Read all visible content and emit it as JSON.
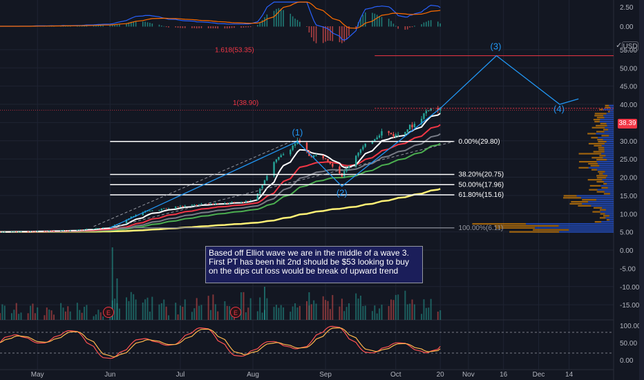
{
  "colors": {
    "background": "#131722",
    "grid": "#1f2433",
    "text": "#b2b5be",
    "up": "#26a69a",
    "down": "#ef5350",
    "ema_white": "#ffffff",
    "ema_red": "#f23645",
    "ema_gray": "#787b86",
    "ema_green": "#4caf50",
    "ema_yellow": "#fff176",
    "elliott": "#2196f3",
    "fib": "#ffffff",
    "extension": "#f23645",
    "macd_blue": "#2962ff",
    "macd_orange": "#ff6d00",
    "stoch_k": "#ff5252",
    "stoch_d": "#ffb74d",
    "volume_profile_up": "#2962ff",
    "volume_profile_down": "#ff9800"
  },
  "axis": {
    "currency_button": "USD",
    "last_price_label": "38.39",
    "x_ticks": [
      "May",
      "Jun",
      "Jul",
      "Aug",
      "Sep",
      "Oct",
      "20",
      "Nov",
      "16",
      "Dec",
      "14"
    ],
    "main_ticks": [
      "55.00",
      "50.00",
      "45.00",
      "40.00",
      "35.00",
      "30.00",
      "25.00",
      "20.00",
      "15.00",
      "10.00",
      "5.00",
      "0.00",
      "-5.00",
      "-10.00",
      "-15.00"
    ],
    "macd_ticks": [
      "2.50",
      "0.00"
    ],
    "stoch_ticks": [
      "100.00",
      "50.00",
      "0.00"
    ]
  },
  "fibonacci": [
    {
      "label": "0.00%(29.80)",
      "price": 29.8
    },
    {
      "label": "38.20%(20.75)",
      "price": 20.75
    },
    {
      "label": "50.00%(17.96)",
      "price": 17.96
    },
    {
      "label": "61.80%(15.16)",
      "price": 15.16
    },
    {
      "label": "100.00%(6.11)",
      "price": 6.11
    }
  ],
  "extensions": [
    {
      "label": "1.618(53.35)",
      "price": 53.35
    },
    {
      "label": "1(38.90)",
      "price": 38.9
    }
  ],
  "waves": [
    "(1)",
    "(2)",
    "(3)",
    "(4)"
  ],
  "earnings_marker": "E",
  "annotation": "Based off  Elliot wave we are in the middle of a wave 3. First PT has been hit 2nd should be $53 looking to buy on the dips cut loss would be break of upward trend",
  "chart_data": {
    "type": "line",
    "title": "",
    "xlabel": "",
    "ylabel": "",
    "ylim": [
      -15,
      58
    ],
    "x_range": [
      "2020-04-15",
      "2021-01-02"
    ],
    "series": [
      {
        "x": [
          "2020-04-15",
          "2020-05-15",
          "2020-06-01",
          "2020-06-15",
          "2020-07-01",
          "2020-07-15",
          "2020-08-01",
          "2020-08-10",
          "2020-08-20",
          "2020-08-25",
          "2020-09-01",
          "2020-09-08",
          "2020-09-15",
          "2020-09-25",
          "2020-10-01",
          "2020-10-10",
          "2020-10-15",
          "2020-10-20"
        ],
        "values": [
          5.0,
          5.4,
          6.3,
          10.5,
          12.0,
          12.8,
          13.5,
          24.0,
          29.8,
          26.0,
          25.5,
          20.5,
          27.0,
          32.5,
          31.5,
          35.0,
          38.9,
          38.4
        ]
      },
      {
        "x": [
          "2020-10-20",
          "2020-11-13",
          "2020-12-10",
          "2020-12-18"
        ],
        "values": [
          38.9,
          53.35,
          40.0,
          41.5
        ]
      }
    ],
    "wave_labels": [
      {
        "label": "(1)",
        "x": "2020-08-20",
        "y": 29.8
      },
      {
        "label": "(2)",
        "x": "2020-09-08",
        "y": 17.5
      },
      {
        "label": "(3)",
        "x": "2020-11-13",
        "y": 53.35
      },
      {
        "label": "(4)",
        "x": "2020-12-10",
        "y": 40.0
      }
    ]
  }
}
